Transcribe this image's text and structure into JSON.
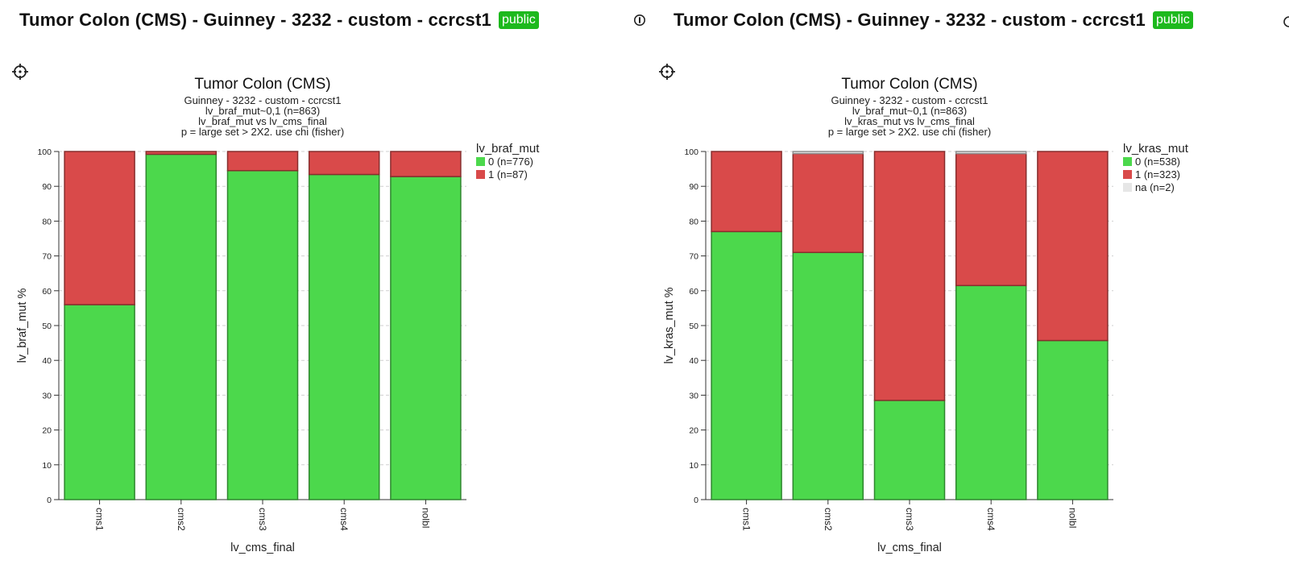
{
  "header": {
    "left": {
      "title": "Tumor Colon (CMS) - Guinney - 3232 - custom - ccrcst1",
      "badge": "public"
    },
    "right": {
      "title": "Tumor Colon (CMS) - Guinney - 3232 - custom - ccrcst1",
      "badge": "public"
    },
    "info_icon": "info-circle-icon",
    "target_icon": "crosshair-icon"
  },
  "colors": {
    "mut0": "#4cd84c",
    "mut1": "#d94a4a",
    "na": "#e6e6e6"
  },
  "chart_data": [
    {
      "type": "bar",
      "stacked": true,
      "title": "Tumor Colon (CMS)",
      "subtitle_lines": [
        "Guinney - 3232 - custom - ccrcst1",
        "lv_braf_mut~0,1 (n=863)",
        "lv_braf_mut vs lv_cms_final",
        "p = large set > 2X2. use chi (fisher)"
      ],
      "xlabel": "lv_cms_final",
      "ylabel": "lv_braf_mut %",
      "ylim": [
        0,
        100
      ],
      "yticks": [
        "0",
        "10",
        "20",
        "30",
        "40",
        "50",
        "60",
        "70",
        "80",
        "90",
        "100"
      ],
      "categories": [
        "cms1",
        "cms2",
        "cms3",
        "cms4",
        "nolbl"
      ],
      "legend_title": "lv_braf_mut",
      "legend_position": "top-right",
      "grid": true,
      "series": [
        {
          "name": "0 (n=776)",
          "color": "#4cd84c",
          "values": [
            56,
            99.2,
            94.5,
            93.4,
            92.8
          ]
        },
        {
          "name": "1 (n=87)",
          "color": "#d94a4a",
          "values": [
            44,
            0.8,
            5.5,
            6.6,
            7.2
          ]
        }
      ]
    },
    {
      "type": "bar",
      "stacked": true,
      "title": "Tumor Colon (CMS)",
      "subtitle_lines": [
        "Guinney - 3232 - custom - ccrcst1",
        "lv_braf_mut~0,1 (n=863)",
        "lv_kras_mut vs lv_cms_final",
        "p = large set > 2X2. use chi (fisher)"
      ],
      "xlabel": "lv_cms_final",
      "ylabel": "lv_kras_mut %",
      "ylim": [
        0,
        100
      ],
      "yticks": [
        "0",
        "10",
        "20",
        "30",
        "40",
        "50",
        "60",
        "70",
        "80",
        "90",
        "100"
      ],
      "categories": [
        "cms1",
        "cms2",
        "cms3",
        "cms4",
        "nolbl"
      ],
      "legend_title": "lv_kras_mut",
      "legend_position": "top-right",
      "grid": true,
      "series": [
        {
          "name": "0 (n=538)",
          "color": "#4cd84c",
          "values": [
            77,
            71,
            28.5,
            61.5,
            45.7
          ]
        },
        {
          "name": "1 (n=323)",
          "color": "#d94a4a",
          "values": [
            23,
            28.4,
            71.5,
            37.9,
            54.3
          ]
        },
        {
          "name": "na (n=2)",
          "color": "#e6e6e6",
          "values": [
            0,
            0.6,
            0,
            0.6,
            0
          ]
        }
      ]
    }
  ]
}
